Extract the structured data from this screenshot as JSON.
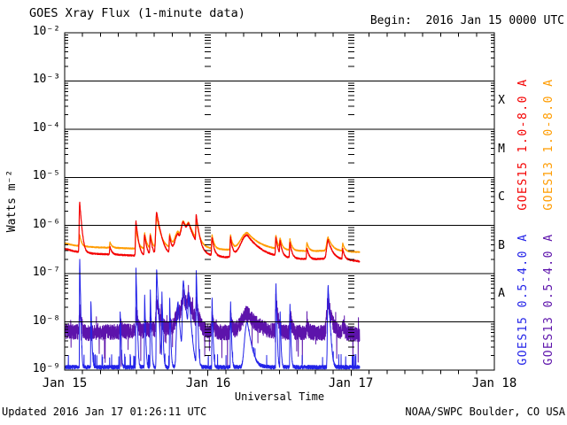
{
  "title": "GOES Xray Flux (1-minute data)",
  "begin": "Begin:  2016 Jan 15 0000 UTC",
  "footer": {
    "updated": "Updated 2016 Jan 17 01:26:11 UTC",
    "source": "NOAA/SWPC Boulder, CO USA"
  },
  "axes": {
    "ylabel": "Watts m⁻²",
    "xlabel": "Universal Time",
    "ytick_labels": [
      "10⁻²",
      "10⁻³",
      "10⁻⁴",
      "10⁻⁵",
      "10⁻⁶",
      "10⁻⁷",
      "10⁻⁸",
      "10⁻⁹"
    ],
    "xtick_labels": [
      "Jan 15",
      "Jan 16",
      "Jan 17",
      "Jan 18"
    ],
    "class_letters": [
      "X",
      "M",
      "C",
      "B",
      "A"
    ]
  },
  "legend": [
    {
      "label": "GOES15 1.0-8.0 A",
      "color": "#f40000"
    },
    {
      "label": "GOES13 1.0-8.0 A",
      "color": "#ff9c00"
    },
    {
      "label": "GOES15 0.5-4.0 A",
      "color": "#2323e8"
    },
    {
      "label": "GOES13 0.5-4.0 A",
      "color": "#5d13ab"
    }
  ],
  "chart_data": {
    "type": "line",
    "title": "GOES Xray Flux (1-minute data)",
    "x_unit": "hours since 2016 Jan 15 0000 UTC",
    "x_range": [
      0,
      72
    ],
    "x_day_ticks": [
      0,
      24,
      48,
      72
    ],
    "x_minor_tick_hours": 3,
    "y_scale": "log10",
    "y_range": [
      1e-09,
      0.01
    ],
    "grid_decade_lines": true,
    "grid_day_columns_hours": [
      24,
      48
    ],
    "data_end_hour": 49.43,
    "series": [
      {
        "channel": "long15",
        "name": "GOES15 1.0-8.0 A",
        "color": "#f40000",
        "baseline_nodes": [
          [
            0,
            3.3e-07
          ],
          [
            1.5,
            2.95e-07
          ],
          [
            3,
            2.75e-07
          ],
          [
            5,
            2.6e-07
          ],
          [
            8,
            2.5e-07
          ],
          [
            11,
            2.4e-07
          ],
          [
            14,
            2.35e-07
          ],
          [
            17,
            2.4e-07
          ],
          [
            19,
            2.6e-07
          ],
          [
            22,
            2.45e-07
          ],
          [
            24,
            2.3e-07
          ],
          [
            27,
            2.2e-07
          ],
          [
            30,
            2.35e-07
          ],
          [
            33,
            2.25e-07
          ],
          [
            36,
            2.15e-07
          ],
          [
            39,
            2.05e-07
          ],
          [
            42,
            2e-07
          ],
          [
            44.5,
            2.1e-07
          ],
          [
            46,
            2e-07
          ],
          [
            48,
            1.9e-07
          ],
          [
            49.43,
            1.8e-07
          ]
        ],
        "noise_log_amplitude": 0.015
      },
      {
        "channel": "long13",
        "name": "GOES13 1.0-8.0 A",
        "color": "#ff9c00",
        "baseline_nodes": [
          [
            0,
            4.3e-07
          ],
          [
            1.5,
            3.9e-07
          ],
          [
            3,
            3.7e-07
          ],
          [
            5,
            3.55e-07
          ],
          [
            8,
            3.45e-07
          ],
          [
            11,
            3.35e-07
          ],
          [
            14,
            3.3e-07
          ],
          [
            17,
            3.35e-07
          ],
          [
            19,
            3.5e-07
          ],
          [
            22,
            3.4e-07
          ],
          [
            24,
            3.25e-07
          ],
          [
            27,
            3.15e-07
          ],
          [
            30,
            3.25e-07
          ],
          [
            33,
            3.2e-07
          ],
          [
            36,
            3.1e-07
          ],
          [
            39,
            3e-07
          ],
          [
            42,
            2.95e-07
          ],
          [
            44.5,
            3.05e-07
          ],
          [
            46,
            2.95e-07
          ],
          [
            48,
            2.85e-07
          ],
          [
            49.43,
            2.8e-07
          ]
        ],
        "noise_log_amplitude": 0.012
      },
      {
        "channel": "short15",
        "name": "GOES15 0.5-4.0 A",
        "color": "#2323e8",
        "floor": 1.05e-09
      },
      {
        "channel": "short13",
        "name": "GOES13 0.5-4.0 A",
        "color": "#5d13ab",
        "baseline_nodes": [
          [
            0,
            6.5e-09
          ],
          [
            4,
            5.8e-09
          ],
          [
            8,
            6.2e-09
          ],
          [
            12,
            6.4e-09
          ],
          [
            16,
            6.8e-09
          ],
          [
            20,
            7.2e-09
          ],
          [
            24,
            6.2e-09
          ],
          [
            28,
            6e-09
          ],
          [
            31,
            6.6e-09
          ],
          [
            34,
            6.2e-09
          ],
          [
            38,
            5.9e-09
          ],
          [
            42,
            6e-09
          ],
          [
            46,
            5.8e-09
          ],
          [
            49.43,
            5.6e-09
          ]
        ],
        "noise_log_amplitude": 0.16
      }
    ],
    "flares": [
      {
        "t": 2.52,
        "long15": 3e-06,
        "long13": 6.5e-07,
        "short15": 2e-07,
        "short13": 2.2e-08,
        "decay": 0.25
      },
      {
        "t": 4.4,
        "short15": 2.5e-08
      },
      {
        "t": 7.6,
        "long15": 3.6e-07,
        "long13": 4.5e-07
      },
      {
        "t": 9.3,
        "short15": 1.5e-08,
        "short13": 9e-09
      },
      {
        "t": 11.95,
        "long15": 1.25e-06,
        "long13": 8.5e-07,
        "short15": 1.3e-07,
        "short13": 1.6e-08,
        "decay": 0.3
      },
      {
        "t": 13.4,
        "long15": 6.4e-07,
        "long13": 7e-07,
        "short15": 3.5e-08,
        "short13": 9e-09
      },
      {
        "t": 14.35,
        "long15": 6e-07,
        "long13": 6.7e-07,
        "short15": 4.5e-08,
        "short13": 1e-08
      },
      {
        "t": 15.42,
        "long15": 1.85e-06,
        "long13": 1.5e-06,
        "short15": 1.2e-07,
        "short13": 2.6e-08,
        "rise": 0.12,
        "decay": 0.55
      },
      {
        "t": 16.3,
        "short15": 4e-08
      },
      {
        "t": 17.6,
        "long15": 5.8e-07,
        "long13": 6.4e-07,
        "short15": 3e-08,
        "short13": 1e-08
      },
      {
        "t": 19.0,
        "long15": 6.6e-07,
        "long13": 7.4e-07,
        "short15": 2.5e-08,
        "short13": 1.5e-08,
        "rise": 0.45,
        "decay": 0.8
      },
      {
        "t": 19.9,
        "long15": 1.06e-06,
        "long13": 1.12e-06,
        "short15": 7e-08,
        "short13": 3.2e-08,
        "rise": 0.3,
        "decay": 1.1
      },
      {
        "t": 20.8,
        "long15": 7e-07,
        "long13": 7.6e-07,
        "short15": 3.5e-08,
        "short13": 2e-08,
        "rise": 0.25,
        "decay": 0.8
      },
      {
        "t": 22.05,
        "long15": 1.45e-06,
        "long13": 1.15e-06,
        "short15": 1.15e-07,
        "short13": 2.3e-08,
        "decay": 0.35
      },
      {
        "t": 24.7,
        "long15": 5.6e-07,
        "long13": 6.3e-07,
        "short15": 3e-08,
        "short13": 1.3e-08
      },
      {
        "t": 27.8,
        "long15": 5.7e-07,
        "long13": 6.4e-07,
        "short15": 2.5e-08,
        "short13": 1.3e-08
      },
      {
        "t": 30.6,
        "long15": 6.3e-07,
        "long13": 7.1e-07,
        "short15": 9e-09,
        "short13": 1.5e-08,
        "rise": 0.9,
        "decay": 1.7
      },
      {
        "t": 35.4,
        "long15": 5.4e-07,
        "long13": 6.1e-07,
        "short15": 6e-08,
        "short13": 3e-08,
        "decay": 0.3
      },
      {
        "t": 36.1,
        "long15": 4.4e-07,
        "long13": 5.2e-07,
        "short15": 1.5e-08
      },
      {
        "t": 37.75,
        "long15": 4.4e-07,
        "long13": 5.3e-07,
        "short15": 2.2e-08,
        "short13": 1.6e-08
      },
      {
        "t": 40.6,
        "long15": 3.4e-07,
        "long13": 4.4e-07,
        "short13": 9e-09
      },
      {
        "t": 44.15,
        "long15": 5e-07,
        "long13": 5.7e-07,
        "short15": 5.5e-08,
        "short13": 2.6e-08,
        "rise": 0.2,
        "decay": 0.6
      },
      {
        "t": 46.6,
        "long15": 3.2e-07,
        "long13": 4.2e-07,
        "short13": 9e-09
      }
    ]
  }
}
